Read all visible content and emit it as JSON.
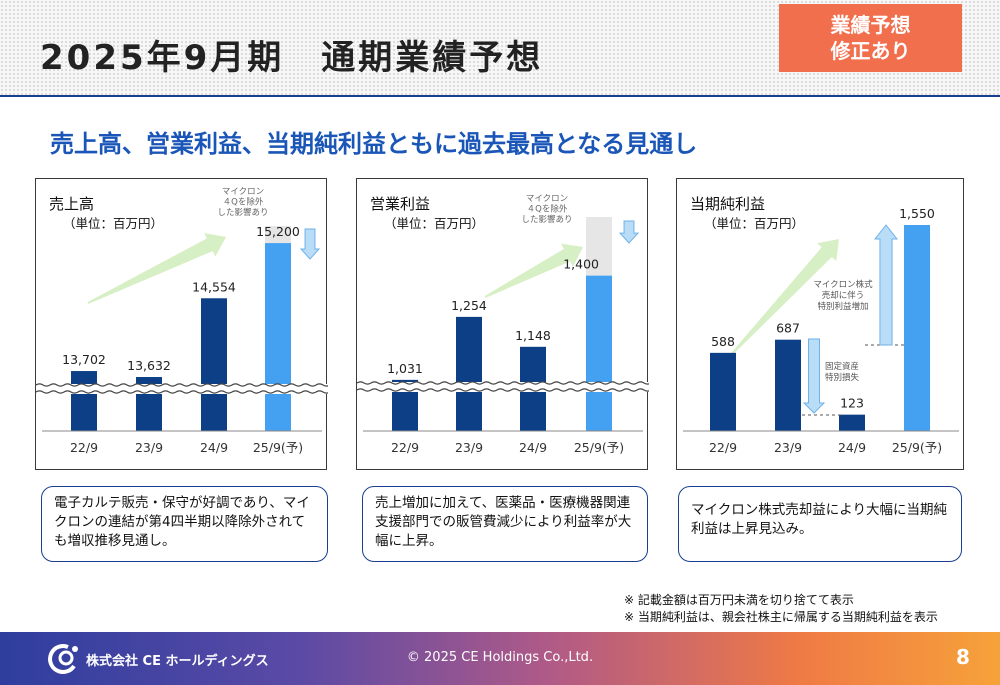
{
  "header": {
    "title": "2025年9月期　通期業績予想",
    "badge_line1": "業績予想",
    "badge_line2": "修正あり"
  },
  "subtitle": "売上高、営業利益、当期純利益ともに過去最高となる見通し",
  "chart_data": [
    {
      "type": "bar",
      "title": "売上高",
      "unit": "（単位：百万円）",
      "categories": [
        "22/9",
        "23/9",
        "24/9",
        "25/9(予)"
      ],
      "values": [
        13702,
        13632,
        14554,
        15200
      ],
      "value_labels": [
        "13,702",
        "13,632",
        "14,554",
        "15,200"
      ],
      "axis_break": true,
      "annotation": "マイクロン\n４Qを除外\nした影響あり"
    },
    {
      "type": "bar",
      "title": "営業利益",
      "unit": "（単位：百万円）",
      "categories": [
        "22/9",
        "23/9",
        "24/9",
        "25/9(予)"
      ],
      "values": [
        1031,
        1254,
        1148,
        1400
      ],
      "value_labels": [
        "1,031",
        "1,254",
        "1,148",
        "1,400"
      ],
      "axis_break": true,
      "annotation": "マイクロン\n４Qを除外\nした影響あり"
    },
    {
      "type": "bar",
      "title": "当期純利益",
      "unit": "（単位：百万円）",
      "categories": [
        "22/9",
        "23/9",
        "24/9",
        "25/9(予)"
      ],
      "values": [
        588,
        687,
        123,
        1550
      ],
      "value_labels": [
        "588",
        "687",
        "123",
        "1,550"
      ],
      "axis_break": false,
      "annotation_up": "マイクロン株式\n売却に伴う\n特別利益増加",
      "annotation_down": "固定資産\n特別損失"
    }
  ],
  "callouts": [
    "電子カルテ販売・保守が好調であり、マイクロンの連結が第4四半期以降除外されても増収推移見通し。",
    "売上増加に加えて、医薬品・医療機器関連支援部門での販管費減少により利益率が大幅に上昇。",
    "マイクロン株式売却益により大幅に当期純利益は上昇見込み。"
  ],
  "footnotes": [
    "※ 記載金額は百万円未満を切り捨てて表示",
    "※ 当期純利益は、親会社株主に帰属する当期純利益を表示"
  ],
  "footer": {
    "company": "株式会社 CE ホールディングス",
    "copyright": "© 2025 CE Holdings Co.,Ltd.",
    "page": "8"
  },
  "colors": {
    "bar_dark": "#0d3f86",
    "bar_forecast": "#44a1f2",
    "forecast_gap": "#e6e6e6",
    "trend_arrow": "#d7efc5",
    "accent": "#1a56b8",
    "badge": "#f26f4e"
  }
}
